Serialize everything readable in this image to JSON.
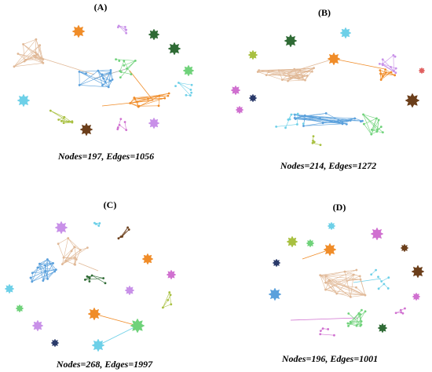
{
  "panels": [
    {
      "label": "(A)",
      "caption": "Nodes=197, Edges=1056"
    },
    {
      "label": "(B)",
      "caption": "Nodes=214, Edges=1272"
    },
    {
      "label": "(C)",
      "caption": "Nodes=268, Edges=1997"
    },
    {
      "label": "(D)",
      "caption": "Nodes=196, Edges=1001"
    }
  ]
}
